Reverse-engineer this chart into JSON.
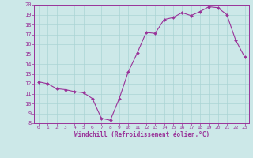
{
  "x": [
    0,
    1,
    2,
    3,
    4,
    5,
    6,
    7,
    8,
    9,
    10,
    11,
    12,
    13,
    14,
    15,
    16,
    17,
    18,
    19,
    20,
    21,
    22,
    23
  ],
  "y": [
    12.2,
    12.0,
    11.5,
    11.4,
    11.2,
    11.1,
    10.5,
    8.5,
    8.3,
    10.5,
    13.2,
    15.1,
    17.2,
    17.1,
    18.5,
    18.7,
    19.2,
    18.9,
    19.3,
    19.8,
    19.7,
    19.0,
    16.4,
    14.7
  ],
  "line_color": "#993399",
  "marker_color": "#993399",
  "bg_color": "#cce8e8",
  "grid_color": "#aad4d4",
  "xlabel": "Windchill (Refroidissement éolien,°C)",
  "ylim": [
    8,
    20
  ],
  "xlim_min": -0.5,
  "xlim_max": 23.5,
  "yticks": [
    8,
    9,
    10,
    11,
    12,
    13,
    14,
    15,
    16,
    17,
    18,
    19,
    20
  ],
  "xticks": [
    0,
    1,
    2,
    3,
    4,
    5,
    6,
    7,
    8,
    9,
    10,
    11,
    12,
    13,
    14,
    15,
    16,
    17,
    18,
    19,
    20,
    21,
    22,
    23
  ],
  "line_color_hex": "#993399",
  "tick_label_color": "#993399",
  "xlabel_color": "#993399",
  "spine_color": "#993399",
  "linewidth": 0.8,
  "markersize": 2.0,
  "xlabel_fontsize": 5.5,
  "xtick_fontsize": 4.5,
  "ytick_fontsize": 5.0
}
